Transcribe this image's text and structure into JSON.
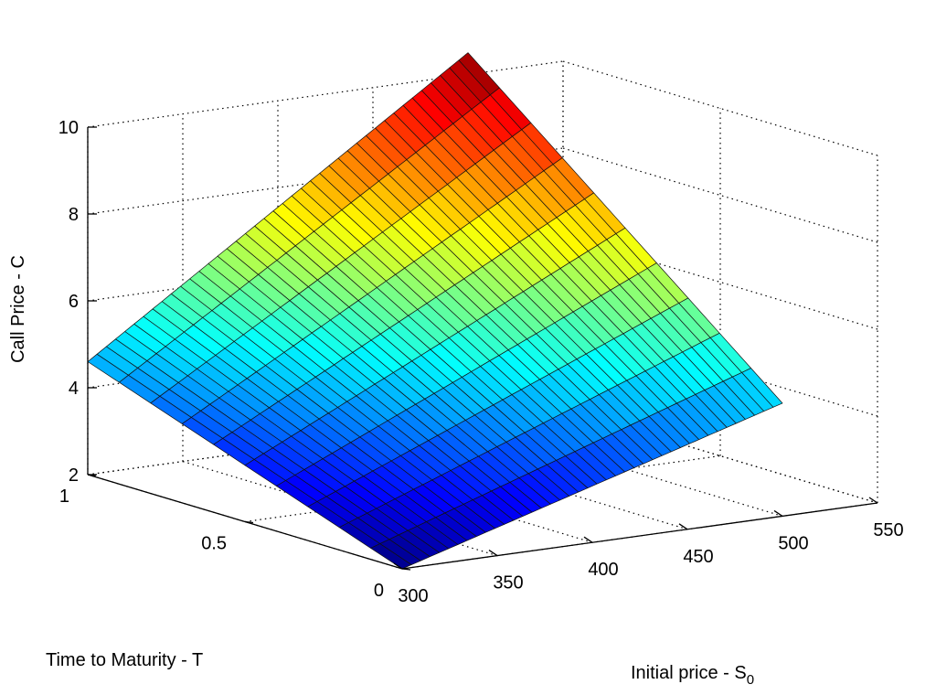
{
  "chart_data": {
    "type": "surface",
    "xlabel": "Initial price - S",
    "xlabel_sub": "0",
    "ylabel": "Time to Maturity - T",
    "zlabel": "Call Price - C",
    "xlim": [
      300,
      550
    ],
    "ylim": [
      0,
      1
    ],
    "zlim": [
      2,
      10
    ],
    "xticks": [
      "300",
      "350",
      "400",
      "450",
      "500",
      "550"
    ],
    "yticks": [
      "0",
      "0.5",
      "1"
    ],
    "zticks": [
      "2",
      "4",
      "6",
      "8",
      "10"
    ],
    "grid": true,
    "colormap": "jet",
    "surface_x_range": [
      300,
      500
    ],
    "surface_y_range": [
      0,
      1
    ],
    "corner_values": {
      "x_min_y_min": 2.0,
      "x_max_y_min": 4.6,
      "x_min_y_max": 4.6,
      "x_max_y_max": 10.5
    },
    "rows_along_x": 41,
    "cols_along_y": 10
  }
}
